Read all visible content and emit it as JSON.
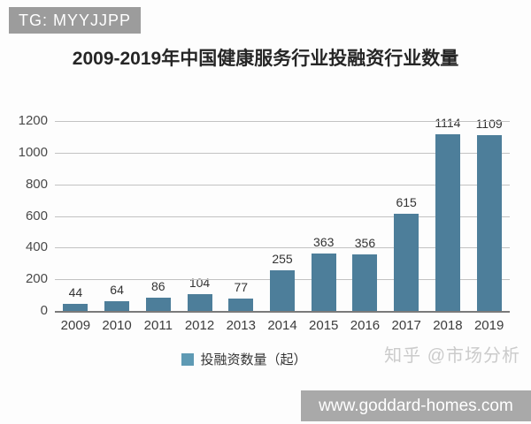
{
  "badge": {
    "text": "TG: MYYJJPP",
    "bg": "#9c9c9c",
    "fg": "#ffffff"
  },
  "chart_data": {
    "type": "bar",
    "title": "2009-2019年中国健康服务行业投融资行业数量",
    "categories": [
      "2009",
      "2010",
      "2011",
      "2012",
      "2013",
      "2014",
      "2015",
      "2016",
      "2017",
      "2018",
      "2019"
    ],
    "values": [
      44,
      64,
      86,
      104,
      77,
      255,
      363,
      356,
      615,
      1114,
      1109
    ],
    "xlabel": "",
    "ylabel": "",
    "ylim": [
      0,
      1200
    ],
    "yticks": [
      0,
      200,
      400,
      600,
      800,
      1000,
      1200
    ],
    "grid": "horizontal",
    "bar_color": "#4d7e9a",
    "legend": {
      "label": "投融资数量（起）",
      "position": "bottom",
      "swatch_color": "#5e9ab4"
    }
  },
  "watermark": {
    "text": "知乎 @市场分析",
    "color": "#cbcbcb"
  },
  "footer": {
    "text": "www.goddard-homes.com",
    "bg": "#a9a9a9",
    "fg": "#ffffff"
  }
}
